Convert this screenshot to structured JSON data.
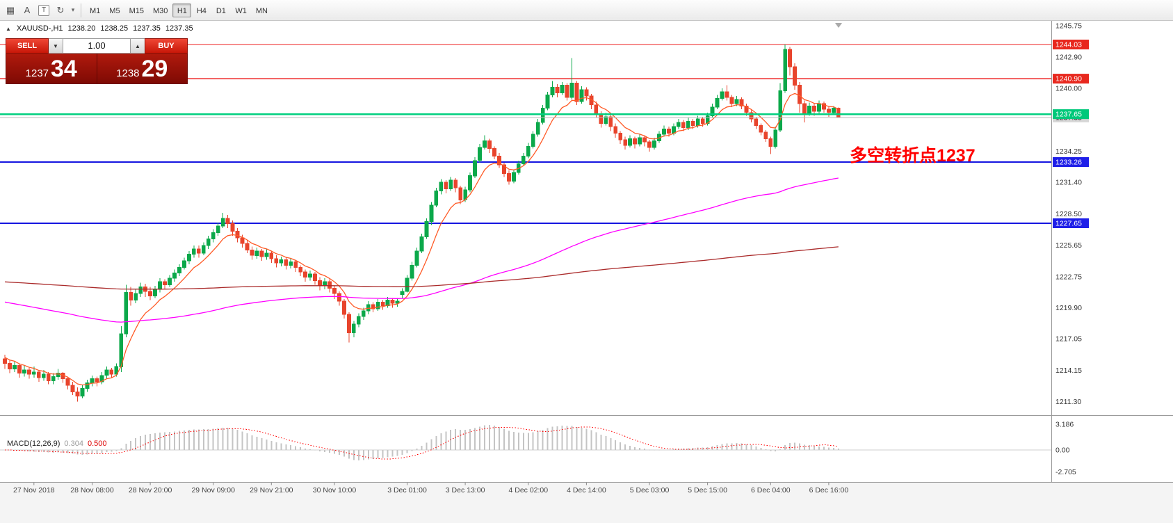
{
  "toolbar": {
    "icons": [
      {
        "name": "grid-icon",
        "glyph": "▦"
      },
      {
        "name": "letter-a-icon",
        "glyph": "A"
      },
      {
        "name": "text-box-icon",
        "glyph": "T"
      },
      {
        "name": "cycles-icon",
        "glyph": "↻"
      },
      {
        "name": "chevron-down-icon",
        "glyph": "▾"
      }
    ],
    "timeframes": [
      "M1",
      "M5",
      "M15",
      "M30",
      "H1",
      "H4",
      "D1",
      "W1",
      "MN"
    ],
    "active_timeframe": "H1"
  },
  "icons": {
    "collapse": "▲",
    "volume_down": "▼",
    "volume_up": "▲"
  },
  "one_click": {
    "sell_label": "SELL",
    "buy_label": "BUY",
    "volume": "1.00",
    "sell_price_small": "1237",
    "sell_price_big": "34",
    "buy_price_small": "1238",
    "buy_price_big": "29"
  },
  "annotation": {
    "text": "多空转折点1237",
    "color": "#ff0000"
  },
  "chart_data": {
    "type": "candlestick",
    "symbol_period": "XAUUSD-,H1",
    "ohlc_header": {
      "open": "1238.20",
      "high": "1238.25",
      "low": "1237.35",
      "close": "1237.35"
    },
    "colors": {
      "up": "#0ba84a",
      "down": "#e8442c",
      "background": "#ffffff"
    },
    "hlines": [
      {
        "value": 1244.03,
        "color": "#ee1c1c",
        "width": 1.4,
        "layer": "below"
      },
      {
        "value": 1240.9,
        "color": "#ee1c1c",
        "width": 1.4,
        "layer": "below"
      },
      {
        "value": 1233.26,
        "color": "#1515e0",
        "width": 2,
        "layer": "below"
      },
      {
        "value": 1227.65,
        "color": "#1515e0",
        "width": 2,
        "layer": "below"
      },
      {
        "value": 1237.35,
        "color": "#b8b8b8",
        "width": 1,
        "layer": "above"
      },
      {
        "value": 1237.65,
        "color": "#00cf7f",
        "width": 2.4,
        "layer": "above"
      }
    ],
    "moving_averages": [
      {
        "name": "fast-ma",
        "period": 8,
        "seed": 1215.5,
        "color": "#ff5a26"
      },
      {
        "name": "medium-ma",
        "period": 150,
        "seed": 1220.5,
        "color": "#ff00ff"
      },
      {
        "name": "slow-ma",
        "period": 600,
        "seed": 1222.3,
        "color": "#aa2a2a"
      }
    ],
    "price_axis": {
      "ticks": [
        {
          "text": "1245.75",
          "value": 1245.75
        },
        {
          "text": "1242.90",
          "value": 1242.9
        },
        {
          "text": "1240.00",
          "value": 1240.0
        },
        {
          "text": "1234.25",
          "value": 1234.25
        },
        {
          "text": "1231.40",
          "value": 1231.4
        },
        {
          "text": "1228.50",
          "value": 1228.5
        },
        {
          "text": "1225.65",
          "value": 1225.65
        },
        {
          "text": "1222.75",
          "value": 1222.75
        },
        {
          "text": "1219.90",
          "value": 1219.9
        },
        {
          "text": "1217.05",
          "value": 1217.05
        },
        {
          "text": "1214.15",
          "value": 1214.15
        },
        {
          "text": "1211.30",
          "value": 1211.3
        }
      ],
      "badges": [
        {
          "text": "1244.03",
          "value": 1244.03,
          "bg": "#e8281e",
          "fg": "#ffffff"
        },
        {
          "text": "1240.90",
          "value": 1240.9,
          "bg": "#e8281e",
          "fg": "#ffffff"
        },
        {
          "text": "1237.35",
          "value": 1237.35,
          "bg": "#d6d6d6",
          "fg": "#222222"
        },
        {
          "text": "1237.65",
          "value": 1237.65,
          "bg": "#00c87a",
          "fg": "#ffffff"
        },
        {
          "text": "1233.26",
          "value": 1233.26,
          "bg": "#1f1fe8",
          "fg": "#ffffff"
        },
        {
          "text": "1227.65",
          "value": 1227.65,
          "bg": "#1f1fe8",
          "fg": "#ffffff"
        }
      ]
    },
    "time_labels": [
      {
        "index": 6,
        "label": "27 Nov 2018"
      },
      {
        "index": 18,
        "label": "28 Nov 08:00"
      },
      {
        "index": 30,
        "label": "28 Nov 20:00"
      },
      {
        "index": 43,
        "label": "29 Nov 09:00"
      },
      {
        "index": 55,
        "label": "29 Nov 21:00"
      },
      {
        "index": 68,
        "label": "30 Nov 10:00"
      },
      {
        "index": 83,
        "label": "3 Dec 01:00"
      },
      {
        "index": 95,
        "label": "3 Dec 13:00"
      },
      {
        "index": 108,
        "label": "4 Dec 02:00"
      },
      {
        "index": 120,
        "label": "4 Dec 14:00"
      },
      {
        "index": 133,
        "label": "5 Dec 03:00"
      },
      {
        "index": 145,
        "label": "5 Dec 15:00"
      },
      {
        "index": 158,
        "label": "6 Dec 04:00"
      },
      {
        "index": 170,
        "label": "6 Dec 16:00"
      }
    ],
    "macd": {
      "label": "MACD(12,26,9)",
      "value_main": "0.304",
      "value_signal": "0.500",
      "params": {
        "fast": 12,
        "slow": 26,
        "signal": 9
      },
      "histogram_color": "#c4c4c4",
      "signal_color": "#ff0000",
      "scale": [
        {
          "text": "3.186",
          "value": 3.186
        },
        {
          "text": "0.00",
          "value": 0
        },
        {
          "text": "-2.705",
          "value": -2.705
        }
      ]
    },
    "candles": [
      [
        1215.2,
        1215.6,
        1214.3,
        1214.8
      ],
      [
        1214.8,
        1215.1,
        1213.9,
        1214.3
      ],
      [
        1214.3,
        1215.0,
        1214.0,
        1214.6
      ],
      [
        1214.6,
        1214.8,
        1213.5,
        1213.9
      ],
      [
        1213.9,
        1214.6,
        1213.6,
        1214.2
      ],
      [
        1214.2,
        1214.4,
        1213.4,
        1213.8
      ],
      [
        1213.8,
        1214.5,
        1213.5,
        1214.0
      ],
      [
        1214.0,
        1214.2,
        1213.1,
        1213.5
      ],
      [
        1213.5,
        1214.2,
        1213.2,
        1213.8
      ],
      [
        1213.8,
        1214.0,
        1212.9,
        1213.2
      ],
      [
        1213.2,
        1213.9,
        1212.9,
        1213.6
      ],
      [
        1213.6,
        1214.3,
        1213.3,
        1213.9
      ],
      [
        1213.9,
        1214.0,
        1213.0,
        1213.4
      ],
      [
        1213.4,
        1213.6,
        1212.4,
        1212.8
      ],
      [
        1212.8,
        1213.1,
        1211.9,
        1212.2
      ],
      [
        1212.2,
        1212.6,
        1211.3,
        1211.8
      ],
      [
        1211.8,
        1212.8,
        1211.6,
        1212.5
      ],
      [
        1212.5,
        1213.3,
        1212.2,
        1213.0
      ],
      [
        1213.0,
        1213.7,
        1212.7,
        1213.4
      ],
      [
        1213.4,
        1213.6,
        1212.7,
        1213.1
      ],
      [
        1213.1,
        1214.0,
        1212.9,
        1213.7
      ],
      [
        1213.7,
        1214.5,
        1213.4,
        1214.2
      ],
      [
        1214.2,
        1214.4,
        1213.5,
        1213.8
      ],
      [
        1213.8,
        1214.8,
        1213.6,
        1214.5
      ],
      [
        1214.5,
        1218.2,
        1214.0,
        1217.5
      ],
      [
        1217.5,
        1222.0,
        1217.2,
        1221.3
      ],
      [
        1221.3,
        1221.8,
        1220.1,
        1220.6
      ],
      [
        1220.6,
        1221.6,
        1220.3,
        1221.2
      ],
      [
        1221.2,
        1222.2,
        1220.9,
        1221.8
      ],
      [
        1221.8,
        1222.1,
        1220.9,
        1221.4
      ],
      [
        1221.4,
        1221.8,
        1220.6,
        1221.0
      ],
      [
        1221.0,
        1221.9,
        1220.8,
        1221.6
      ],
      [
        1221.6,
        1222.6,
        1221.3,
        1222.3
      ],
      [
        1222.3,
        1222.5,
        1221.6,
        1222.0
      ],
      [
        1222.0,
        1222.9,
        1221.8,
        1222.6
      ],
      [
        1222.6,
        1223.4,
        1222.3,
        1223.1
      ],
      [
        1223.1,
        1223.9,
        1222.8,
        1223.6
      ],
      [
        1223.6,
        1224.5,
        1223.4,
        1224.2
      ],
      [
        1224.2,
        1225.1,
        1223.9,
        1224.8
      ],
      [
        1224.8,
        1225.6,
        1224.5,
        1225.3
      ],
      [
        1225.3,
        1225.6,
        1224.5,
        1224.9
      ],
      [
        1224.9,
        1225.9,
        1224.7,
        1225.6
      ],
      [
        1225.6,
        1226.5,
        1225.3,
        1226.2
      ],
      [
        1226.2,
        1227.1,
        1225.9,
        1226.8
      ],
      [
        1226.8,
        1227.7,
        1226.5,
        1227.4
      ],
      [
        1227.4,
        1228.6,
        1227.2,
        1228.1
      ],
      [
        1228.1,
        1228.4,
        1227.2,
        1227.6
      ],
      [
        1227.6,
        1227.9,
        1226.5,
        1226.9
      ],
      [
        1226.9,
        1227.2,
        1225.9,
        1226.3
      ],
      [
        1226.3,
        1226.6,
        1225.4,
        1225.8
      ],
      [
        1225.8,
        1226.1,
        1224.9,
        1225.2
      ],
      [
        1225.2,
        1225.5,
        1224.3,
        1224.7
      ],
      [
        1224.7,
        1225.4,
        1224.4,
        1225.1
      ],
      [
        1225.1,
        1225.3,
        1224.2,
        1224.6
      ],
      [
        1224.6,
        1225.3,
        1224.3,
        1224.9
      ],
      [
        1224.9,
        1225.1,
        1224.0,
        1224.4
      ],
      [
        1224.4,
        1224.7,
        1223.6,
        1224.0
      ],
      [
        1224.0,
        1224.6,
        1223.7,
        1224.3
      ],
      [
        1224.3,
        1224.5,
        1223.4,
        1223.8
      ],
      [
        1223.8,
        1224.4,
        1223.5,
        1224.1
      ],
      [
        1224.1,
        1224.3,
        1223.2,
        1223.6
      ],
      [
        1223.6,
        1223.8,
        1222.8,
        1223.2
      ],
      [
        1223.2,
        1223.4,
        1222.3,
        1222.7
      ],
      [
        1222.7,
        1223.3,
        1222.4,
        1223.0
      ],
      [
        1223.0,
        1223.2,
        1222.0,
        1222.4
      ],
      [
        1222.4,
        1222.7,
        1221.5,
        1221.9
      ],
      [
        1221.9,
        1222.6,
        1221.6,
        1222.3
      ],
      [
        1222.3,
        1222.5,
        1221.3,
        1221.7
      ],
      [
        1221.7,
        1221.9,
        1220.7,
        1221.2
      ],
      [
        1221.2,
        1221.4,
        1220.1,
        1220.5
      ],
      [
        1220.5,
        1220.7,
        1218.9,
        1219.3
      ],
      [
        1219.3,
        1219.5,
        1216.7,
        1217.6
      ],
      [
        1217.6,
        1218.7,
        1217.2,
        1218.4
      ],
      [
        1218.4,
        1219.4,
        1218.1,
        1219.1
      ],
      [
        1219.1,
        1219.9,
        1218.8,
        1219.6
      ],
      [
        1219.6,
        1220.5,
        1219.3,
        1220.2
      ],
      [
        1220.2,
        1220.4,
        1219.5,
        1219.8
      ],
      [
        1219.8,
        1220.7,
        1219.6,
        1220.4
      ],
      [
        1220.4,
        1220.6,
        1219.7,
        1220.1
      ],
      [
        1220.1,
        1220.9,
        1219.9,
        1220.6
      ],
      [
        1220.6,
        1220.8,
        1219.9,
        1220.3
      ],
      [
        1220.3,
        1220.8,
        1220.0,
        1220.5
      ],
      [
        1221.1,
        1221.7,
        1220.8,
        1221.4
      ],
      [
        1221.4,
        1222.9,
        1221.3,
        1222.6
      ],
      [
        1222.6,
        1224.1,
        1222.4,
        1223.8
      ],
      [
        1223.8,
        1225.4,
        1223.6,
        1225.1
      ],
      [
        1225.1,
        1226.7,
        1224.9,
        1226.4
      ],
      [
        1226.4,
        1228.1,
        1226.2,
        1227.8
      ],
      [
        1227.8,
        1229.6,
        1227.5,
        1229.3
      ],
      [
        1229.3,
        1230.9,
        1229.1,
        1230.6
      ],
      [
        1230.6,
        1231.7,
        1230.3,
        1231.4
      ],
      [
        1231.4,
        1231.6,
        1230.4,
        1230.8
      ],
      [
        1230.8,
        1231.9,
        1230.6,
        1231.6
      ],
      [
        1231.6,
        1231.8,
        1230.5,
        1230.9
      ],
      [
        1230.9,
        1231.1,
        1229.4,
        1229.8
      ],
      [
        1229.8,
        1231.0,
        1229.6,
        1230.7
      ],
      [
        1230.7,
        1232.3,
        1230.5,
        1232.0
      ],
      [
        1232.0,
        1233.7,
        1231.8,
        1233.4
      ],
      [
        1233.4,
        1234.9,
        1233.2,
        1234.6
      ],
      [
        1234.6,
        1235.7,
        1234.4,
        1235.2
      ],
      [
        1235.2,
        1235.4,
        1234.1,
        1234.5
      ],
      [
        1234.5,
        1234.7,
        1233.5,
        1233.8
      ],
      [
        1233.8,
        1234.1,
        1232.7,
        1233.0
      ],
      [
        1233.0,
        1233.2,
        1231.9,
        1232.2
      ],
      [
        1232.2,
        1232.5,
        1231.2,
        1231.5
      ],
      [
        1231.5,
        1232.6,
        1231.3,
        1232.3
      ],
      [
        1232.3,
        1233.4,
        1232.1,
        1233.1
      ],
      [
        1233.1,
        1234.1,
        1232.9,
        1233.8
      ],
      [
        1233.8,
        1235.0,
        1233.6,
        1234.7
      ],
      [
        1234.7,
        1236.1,
        1234.5,
        1235.8
      ],
      [
        1235.8,
        1237.2,
        1235.6,
        1236.9
      ],
      [
        1236.9,
        1238.5,
        1236.7,
        1238.2
      ],
      [
        1238.2,
        1239.7,
        1238.0,
        1239.4
      ],
      [
        1239.4,
        1240.7,
        1239.2,
        1240.1
      ],
      [
        1240.1,
        1240.4,
        1239.2,
        1239.6
      ],
      [
        1239.6,
        1240.6,
        1239.4,
        1240.3
      ],
      [
        1240.3,
        1240.5,
        1238.9,
        1239.2
      ],
      [
        1239.2,
        1242.8,
        1239.0,
        1240.5
      ],
      [
        1240.5,
        1240.7,
        1238.5,
        1238.8
      ],
      [
        1238.8,
        1240.2,
        1238.6,
        1239.9
      ],
      [
        1239.9,
        1240.1,
        1238.9,
        1239.3
      ],
      [
        1239.3,
        1239.5,
        1238.1,
        1238.5
      ],
      [
        1238.5,
        1238.8,
        1237.3,
        1237.6
      ],
      [
        1237.6,
        1237.9,
        1236.4,
        1236.8
      ],
      [
        1236.8,
        1237.8,
        1236.6,
        1237.4
      ],
      [
        1237.4,
        1237.6,
        1236.1,
        1236.5
      ],
      [
        1236.5,
        1236.8,
        1235.5,
        1235.9
      ],
      [
        1235.9,
        1236.1,
        1234.9,
        1235.3
      ],
      [
        1235.3,
        1235.6,
        1234.4,
        1234.8
      ],
      [
        1234.8,
        1235.7,
        1234.6,
        1235.4
      ],
      [
        1235.4,
        1235.6,
        1234.5,
        1234.9
      ],
      [
        1234.9,
        1235.8,
        1234.7,
        1235.5
      ],
      [
        1235.5,
        1235.7,
        1234.7,
        1235.1
      ],
      [
        1235.1,
        1235.3,
        1234.2,
        1234.6
      ],
      [
        1234.6,
        1235.5,
        1234.4,
        1235.2
      ],
      [
        1235.2,
        1236.1,
        1235.0,
        1235.8
      ],
      [
        1235.8,
        1236.6,
        1235.6,
        1236.3
      ],
      [
        1236.3,
        1236.5,
        1235.6,
        1235.9
      ],
      [
        1235.9,
        1236.8,
        1235.7,
        1236.5
      ],
      [
        1236.5,
        1237.2,
        1236.3,
        1236.9
      ],
      [
        1236.9,
        1237.1,
        1236.1,
        1236.4
      ],
      [
        1236.4,
        1237.3,
        1236.2,
        1237.0
      ],
      [
        1237.0,
        1237.2,
        1236.3,
        1236.6
      ],
      [
        1236.6,
        1237.5,
        1236.4,
        1237.2
      ],
      [
        1237.2,
        1237.4,
        1236.5,
        1236.8
      ],
      [
        1236.8,
        1237.8,
        1236.6,
        1237.5
      ],
      [
        1237.5,
        1238.6,
        1237.3,
        1238.3
      ],
      [
        1238.3,
        1239.4,
        1238.1,
        1239.1
      ],
      [
        1239.1,
        1240.0,
        1238.9,
        1239.7
      ],
      [
        1239.7,
        1240.3,
        1238.9,
        1239.2
      ],
      [
        1239.2,
        1239.4,
        1238.3,
        1238.6
      ],
      [
        1238.6,
        1239.3,
        1238.4,
        1239.0
      ],
      [
        1239.0,
        1239.2,
        1238.1,
        1238.4
      ],
      [
        1238.4,
        1238.6,
        1237.5,
        1237.8
      ],
      [
        1237.8,
        1238.0,
        1236.9,
        1237.2
      ],
      [
        1237.2,
        1237.4,
        1236.3,
        1236.6
      ],
      [
        1236.6,
        1236.8,
        1235.7,
        1236.0
      ],
      [
        1236.0,
        1236.2,
        1235.1,
        1235.4
      ],
      [
        1235.4,
        1235.6,
        1234.0,
        1234.7
      ],
      [
        1234.7,
        1236.5,
        1234.5,
        1236.2
      ],
      [
        1236.2,
        1240.5,
        1236.0,
        1239.8
      ],
      [
        1239.8,
        1244.03,
        1239.6,
        1243.6
      ],
      [
        1243.6,
        1243.8,
        1241.2,
        1242.0
      ],
      [
        1242.0,
        1242.3,
        1239.9,
        1240.3
      ],
      [
        1240.3,
        1240.6,
        1237.8,
        1238.6
      ],
      [
        1238.6,
        1238.9,
        1236.9,
        1237.7
      ],
      [
        1237.7,
        1238.7,
        1237.5,
        1238.4
      ],
      [
        1238.4,
        1238.6,
        1237.5,
        1237.9
      ],
      [
        1237.9,
        1238.9,
        1237.7,
        1238.6
      ],
      [
        1238.6,
        1238.8,
        1237.8,
        1238.1
      ],
      [
        1238.1,
        1238.4,
        1237.4,
        1237.8
      ],
      [
        1237.8,
        1238.4,
        1237.6,
        1238.2
      ],
      [
        1238.2,
        1238.25,
        1237.35,
        1237.35
      ]
    ]
  }
}
